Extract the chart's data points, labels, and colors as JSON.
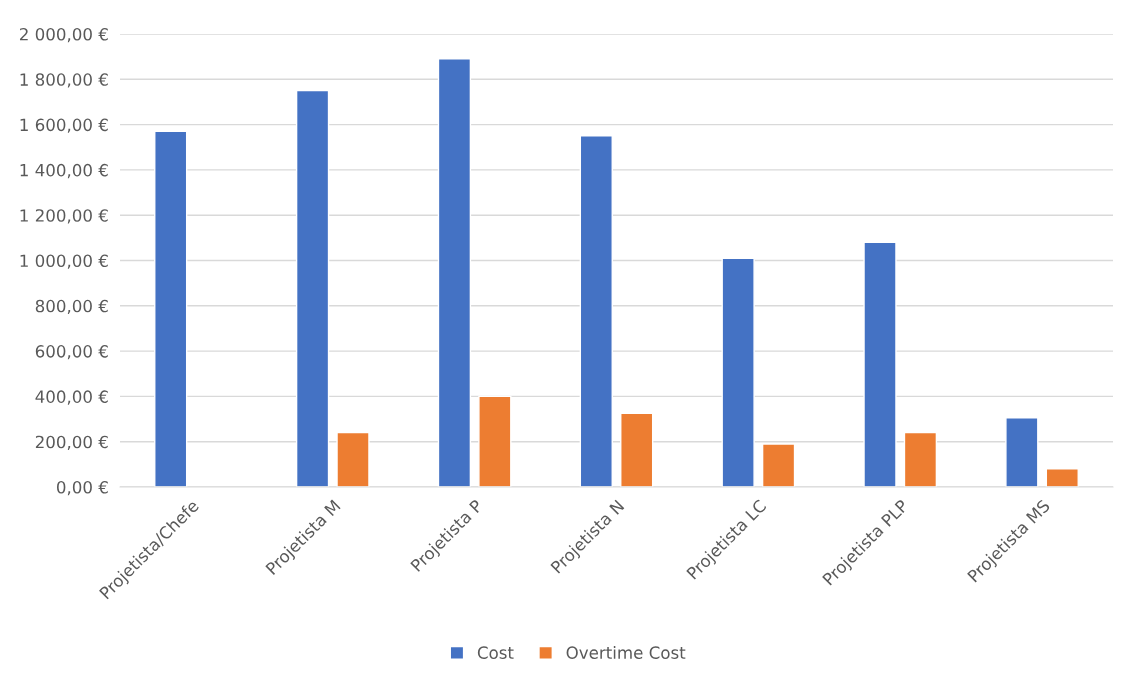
{
  "chart_data": {
    "type": "bar",
    "categories": [
      "Projetista/Chefe",
      "Projetista M",
      "Projetista P",
      "Projetista N",
      "Projetista LC",
      "Projetista PLP",
      "Projetista MS"
    ],
    "series": [
      {
        "name": "Cost",
        "color": "#4472c4",
        "values": [
          1570,
          1750,
          1890,
          1550,
          1010,
          1080,
          305
        ]
      },
      {
        "name": "Overtime Cost",
        "color": "#ed7d31",
        "values": [
          null,
          240,
          400,
          325,
          190,
          240,
          80
        ]
      }
    ],
    "ylim": [
      0,
      2000
    ],
    "yticks": [
      {
        "value": 0,
        "label": "0,00 €"
      },
      {
        "value": 200,
        "label": "200,00 €"
      },
      {
        "value": 400,
        "label": "400,00 €"
      },
      {
        "value": 600,
        "label": "600,00 €"
      },
      {
        "value": 800,
        "label": "800,00 €"
      },
      {
        "value": 1000,
        "label": "1 000,00 €"
      },
      {
        "value": 1200,
        "label": "1 200,00 €"
      },
      {
        "value": 1400,
        "label": "1 400,00 €"
      },
      {
        "value": 1600,
        "label": "1 600,00 €"
      },
      {
        "value": 1800,
        "label": "1 800,00 €"
      },
      {
        "value": 2000,
        "label": "2 000,00 €"
      }
    ],
    "grid": "y",
    "legend": "bottom"
  }
}
